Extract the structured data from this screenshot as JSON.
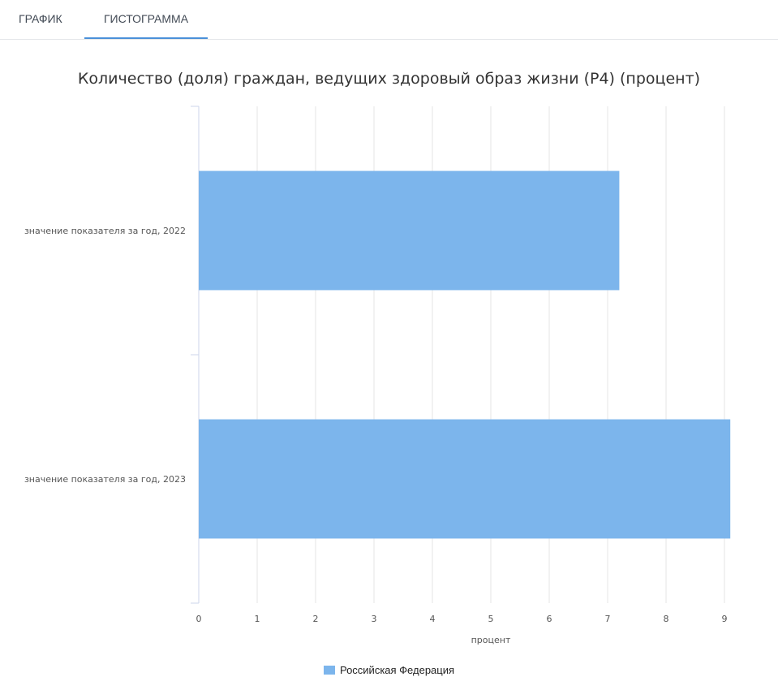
{
  "tabs": [
    {
      "label": "ГРАФИК",
      "active": false
    },
    {
      "label": "ГИСТОГРАММА",
      "active": true
    }
  ],
  "chart_data": {
    "type": "bar",
    "orientation": "horizontal",
    "title": "Количество (доля) граждан, ведущих здоровый образ жизни (P4) (процент)",
    "xlabel": "процент",
    "ylabel": "",
    "categories": [
      "значение показателя за год, 2022",
      "значение показателя за год, 2023"
    ],
    "series": [
      {
        "name": "Российская Федерация",
        "values": [
          7.2,
          9.1
        ],
        "color": "#7cb5ec"
      }
    ],
    "xlim": [
      0,
      10
    ],
    "xticks": [
      "0",
      "1",
      "2",
      "3",
      "4",
      "5",
      "6",
      "7",
      "8",
      "9",
      "10"
    ],
    "grid": true,
    "legend": "bottom-center"
  }
}
